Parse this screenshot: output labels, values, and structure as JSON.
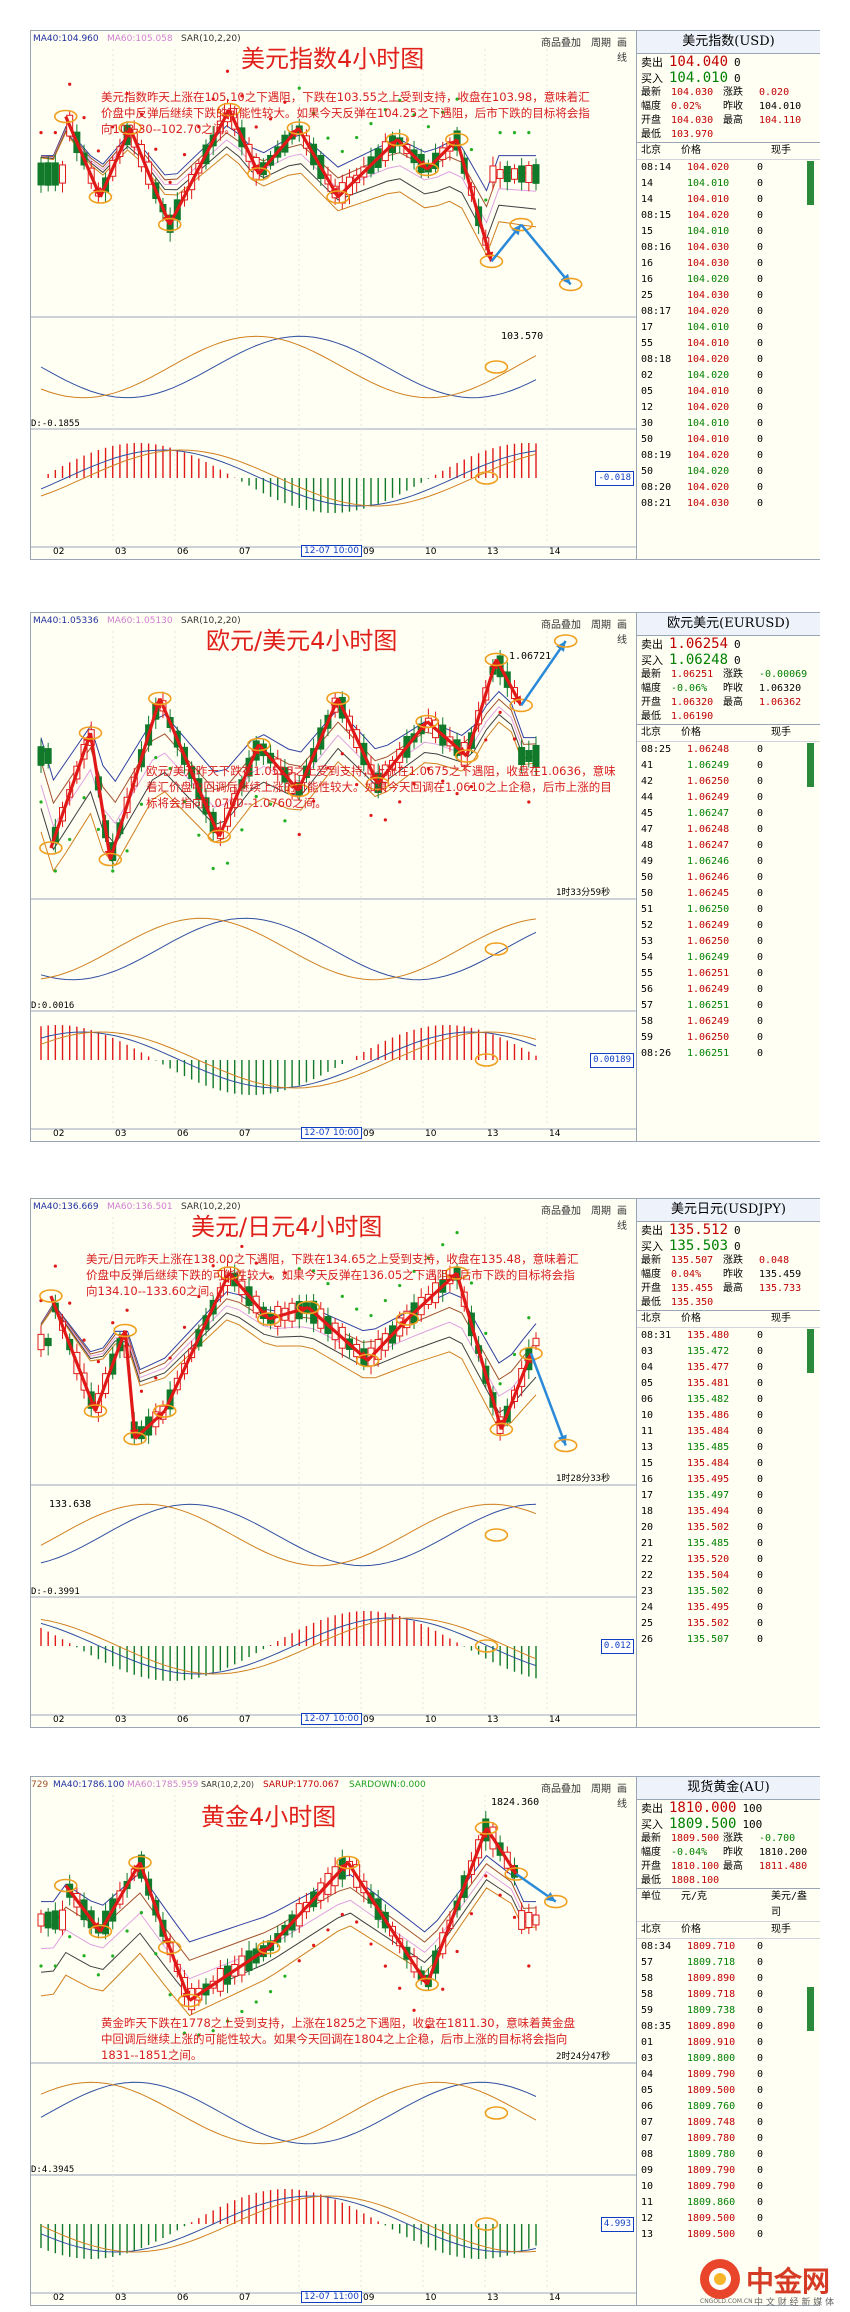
{
  "panels": [
    {
      "key": "usd",
      "title": "美元指数4小时图",
      "header": {
        "ma40": "MA40:104.960",
        "ma60": "MA60:105.058",
        "sar": "SAR(10,2,20)"
      },
      "top_buttons": [
        "商品叠加",
        "周期",
        "画线"
      ],
      "note": "美元指数昨天上涨在105.10之下遇阻，下跌在103.55之上受到支持，收盘在103.98，意味着汇价盘中反弹后继续下跌的可能性较大。如果今天反弹在104.25之下遇阻，后市下跌的目标将会指向103.30--102.70之间。",
      "price_label": "103.570",
      "macd_label": "D:-0.1855",
      "macd_box": "-0.018",
      "time_left": "",
      "x_labels": [
        "02",
        "03",
        "06",
        "07",
        "12-07 10:00",
        "09",
        "10",
        "13",
        "14"
      ],
      "quote": {
        "title": "美元指数(USD)",
        "sell_label": "卖出",
        "sell": "104.040",
        "sell_vol": "0",
        "buy_label": "买入",
        "buy": "104.010",
        "buy_vol": "0",
        "stats": [
          [
            "最新",
            "104.030",
            "涨跌",
            "0.020"
          ],
          [
            "幅度",
            "0.02%",
            "昨收",
            "104.010"
          ],
          [
            "开盘",
            "104.030",
            "最高",
            "104.110"
          ],
          [
            "最低",
            "103.970",
            "",
            ""
          ]
        ],
        "cols": [
          "北京",
          "价格",
          "现手"
        ],
        "ticks": [
          [
            "08:14",
            "104.020",
            "0"
          ],
          [
            "14",
            "104.010",
            "0"
          ],
          [
            "14",
            "104.010",
            "0"
          ],
          [
            "08:15",
            "104.020",
            "0"
          ],
          [
            "15",
            "104.010",
            "0"
          ],
          [
            "08:16",
            "104.030",
            "0"
          ],
          [
            "16",
            "104.030",
            "0"
          ],
          [
            "16",
            "104.020",
            "0"
          ],
          [
            "25",
            "104.030",
            "0"
          ],
          [
            "08:17",
            "104.020",
            "0"
          ],
          [
            "17",
            "104.010",
            "0"
          ],
          [
            "55",
            "104.010",
            "0"
          ],
          [
            "08:18",
            "104.020",
            "0"
          ],
          [
            "02",
            "104.020",
            "0"
          ],
          [
            "05",
            "104.010",
            "0"
          ],
          [
            "12",
            "104.020",
            "0"
          ],
          [
            "30",
            "104.010",
            "0"
          ],
          [
            "50",
            "104.010",
            "0"
          ],
          [
            "08:19",
            "104.020",
            "0"
          ],
          [
            "50",
            "104.020",
            "0"
          ],
          [
            "08:20",
            "104.020",
            "0"
          ],
          [
            "08:21",
            "104.030",
            "0"
          ]
        ]
      }
    },
    {
      "key": "eur",
      "title": "欧元/美元4小时图",
      "header": {
        "ma40": "MA40:1.05336",
        "ma60": "MA60:1.05130",
        "sar": "SAR(10,2,20)"
      },
      "top_buttons": [
        "商品叠加",
        "周期",
        "画线"
      ],
      "note": "欧元/美元昨天下跌在1.0525之上受到支持，上涨在1.0675之下遇阻，收盘在1.0636，意味着汇价盘中回调后继续上涨的可能性较大。如果今天回调在1.0610之上企稳，后市上涨的目标将会指向1.0700--1.0760之间。",
      "price_label": "1.06721",
      "macd_label": "D:0.0016",
      "macd_box": "0.00189",
      "time_left": "1时33分59秒",
      "x_labels": [
        "02",
        "03",
        "06",
        "07",
        "12-07 10:00",
        "09",
        "10",
        "13",
        "14"
      ],
      "quote": {
        "title": "欧元美元(EURUSD)",
        "sell_label": "卖出",
        "sell": "1.06254",
        "sell_vol": "0",
        "buy_label": "买入",
        "buy": "1.06248",
        "buy_vol": "0",
        "stats": [
          [
            "最新",
            "1.06251",
            "涨跌",
            "-0.00069"
          ],
          [
            "幅度",
            "-0.06%",
            "昨收",
            "1.06320"
          ],
          [
            "开盘",
            "1.06320",
            "最高",
            "1.06362"
          ],
          [
            "最低",
            "1.06190",
            "",
            ""
          ]
        ],
        "cols": [
          "北京",
          "价格",
          "现手"
        ],
        "ticks": [
          [
            "08:25",
            "1.06248",
            "0"
          ],
          [
            "41",
            "1.06249",
            "0"
          ],
          [
            "42",
            "1.06250",
            "0"
          ],
          [
            "44",
            "1.06249",
            "0"
          ],
          [
            "45",
            "1.06247",
            "0"
          ],
          [
            "47",
            "1.06248",
            "0"
          ],
          [
            "48",
            "1.06247",
            "0"
          ],
          [
            "49",
            "1.06246",
            "0"
          ],
          [
            "50",
            "1.06246",
            "0"
          ],
          [
            "50",
            "1.06245",
            "0"
          ],
          [
            "51",
            "1.06250",
            "0"
          ],
          [
            "52",
            "1.06249",
            "0"
          ],
          [
            "53",
            "1.06250",
            "0"
          ],
          [
            "54",
            "1.06249",
            "0"
          ],
          [
            "55",
            "1.06251",
            "0"
          ],
          [
            "56",
            "1.06249",
            "0"
          ],
          [
            "57",
            "1.06251",
            "0"
          ],
          [
            "58",
            "1.06249",
            "0"
          ],
          [
            "59",
            "1.06250",
            "0"
          ],
          [
            "08:26",
            "1.06251",
            "0"
          ]
        ]
      }
    },
    {
      "key": "jpy",
      "title": "美元/日元4小时图",
      "header": {
        "ma40": "MA40:136.669",
        "ma60": "MA60:136.501",
        "sar": "SAR(10,2,20)"
      },
      "top_buttons": [
        "商品叠加",
        "周期",
        "画线"
      ],
      "note": "美元/日元昨天上涨在138.00之下遇阻，下跌在134.65之上受到支持，收盘在135.48，意味着汇价盘中反弹后继续下跌的可能性较大。如果今天反弹在136.05之下遇阻，后市下跌的目标将会指向134.10--133.60之间。",
      "price_label": "133.638",
      "macd_label": "D:-0.3991",
      "macd_box": "0.012",
      "time_left": "1时28分33秒",
      "x_labels": [
        "02",
        "03",
        "06",
        "07",
        "12-07 10:00",
        "09",
        "10",
        "13",
        "14"
      ],
      "quote": {
        "title": "美元日元(USDJPY)",
        "sell_label": "卖出",
        "sell": "135.512",
        "sell_vol": "0",
        "buy_label": "买入",
        "buy": "135.503",
        "buy_vol": "0",
        "stats": [
          [
            "最新",
            "135.507",
            "涨跌",
            "0.048"
          ],
          [
            "幅度",
            "0.04%",
            "昨收",
            "135.459"
          ],
          [
            "开盘",
            "135.455",
            "最高",
            "135.733"
          ],
          [
            "最低",
            "135.350",
            "",
            ""
          ]
        ],
        "cols": [
          "北京",
          "价格",
          "现手"
        ],
        "ticks": [
          [
            "08:31",
            "135.480",
            "0"
          ],
          [
            "03",
            "135.472",
            "0"
          ],
          [
            "04",
            "135.477",
            "0"
          ],
          [
            "05",
            "135.481",
            "0"
          ],
          [
            "06",
            "135.482",
            "0"
          ],
          [
            "10",
            "135.486",
            "0"
          ],
          [
            "11",
            "135.484",
            "0"
          ],
          [
            "13",
            "135.485",
            "0"
          ],
          [
            "15",
            "135.484",
            "0"
          ],
          [
            "16",
            "135.495",
            "0"
          ],
          [
            "17",
            "135.497",
            "0"
          ],
          [
            "18",
            "135.494",
            "0"
          ],
          [
            "20",
            "135.502",
            "0"
          ],
          [
            "21",
            "135.485",
            "0"
          ],
          [
            "22",
            "135.520",
            "0"
          ],
          [
            "22",
            "135.504",
            "0"
          ],
          [
            "23",
            "135.502",
            "0"
          ],
          [
            "24",
            "135.495",
            "0"
          ],
          [
            "25",
            "135.502",
            "0"
          ],
          [
            "26",
            "135.507",
            "0"
          ]
        ]
      }
    },
    {
      "key": "xau",
      "title": "黄金4小时图",
      "header": {
        "ma40": "MA40:1786.100",
        "ma60": "MA60:1785.959",
        "sar": "SAR(10,2,20)",
        "sarup": "SARUP:1770.067",
        "sardown": "SARDOWN:0.000",
        "ma20": "729"
      },
      "top_buttons": [
        "商品叠加",
        "周期",
        "画线"
      ],
      "note": "黄金昨天下跌在1778之上受到支持，上涨在1825之下遇阻，收盘在1811.30，意味着黄金盘中回调后继续上涨的可能性较大。如果今天回调在1804之上企稳，后市上涨的目标将会指向1831--1851之间。",
      "price_label": "1824.360",
      "macd_label": "D:4.3945",
      "macd_box": "4.993",
      "time_left": "2时24分47秒",
      "x_labels": [
        "02",
        "03",
        "06",
        "07",
        "12-07 11:00",
        "09",
        "10",
        "13",
        "14"
      ],
      "quote": {
        "title": "现货黄金(AU)",
        "sell_label": "卖出",
        "sell": "1810.000",
        "sell_vol": "100",
        "buy_label": "买入",
        "buy": "1809.500",
        "buy_vol": "100",
        "stats": [
          [
            "最新",
            "1809.500",
            "涨跌",
            "-0.700"
          ],
          [
            "幅度",
            "-0.04%",
            "昨收",
            "1810.200"
          ],
          [
            "开盘",
            "1810.100",
            "最高",
            "1811.480"
          ],
          [
            "最低",
            "1808.100",
            "",
            ""
          ]
        ],
        "cols": [
          "单位",
          "元/克",
          "美元/盎司"
        ],
        "cols2": [
          "北京",
          "价格",
          "现手"
        ],
        "ticks": [
          [
            "08:34",
            "1809.710",
            "0"
          ],
          [
            "57",
            "1809.718",
            "0"
          ],
          [
            "58",
            "1809.890",
            "0"
          ],
          [
            "58",
            "1809.718",
            "0"
          ],
          [
            "59",
            "1809.738",
            "0"
          ],
          [
            "08:35",
            "1809.890",
            "0"
          ],
          [
            "01",
            "1809.910",
            "0"
          ],
          [
            "03",
            "1809.800",
            "0"
          ],
          [
            "04",
            "1809.790",
            "0"
          ],
          [
            "05",
            "1809.500",
            "0"
          ],
          [
            "06",
            "1809.760",
            "0"
          ],
          [
            "07",
            "1809.748",
            "0"
          ],
          [
            "07",
            "1809.780",
            "0"
          ],
          [
            "08",
            "1809.780",
            "0"
          ],
          [
            "09",
            "1809.790",
            "0"
          ],
          [
            "10",
            "1809.790",
            "0"
          ],
          [
            "11",
            "1809.860",
            "0"
          ],
          [
            "12",
            "1809.500",
            "0"
          ],
          [
            "13",
            "1809.500",
            "0"
          ]
        ]
      }
    }
  ],
  "footer": {
    "logo_text": "中金网",
    "logo_sub": "中 文 财 经 新 媒 体",
    "logo_url": "CNGOLD.COM.CN"
  },
  "colors": {
    "up_candle": "#e01818",
    "down_candle": "#107a2a",
    "trend_arrow": "#e01818",
    "forecast_arrow": "#2a8ad8",
    "circle": "#f0a020",
    "sar_up": "#e01818",
    "sar_down": "#22b022"
  },
  "chart_data": [
    {
      "type": "candlestick",
      "title": "美元指数4小时图",
      "x": [
        "02",
        "03",
        "06",
        "07",
        "12-07 10:00",
        "09",
        "10",
        "13",
        "14"
      ],
      "swing_points": [
        105.5,
        104.6,
        105.6,
        104.2,
        105.0,
        104.3,
        105.3,
        104.4,
        105.2,
        104.6,
        104.9,
        103.57
      ],
      "key_levels": {
        "resistance": 105.1,
        "support": 103.55,
        "close": 103.98,
        "rebound_cap": 104.25,
        "target": [
          103.3,
          102.7
        ]
      },
      "ylabel": ""
    },
    {
      "type": "candlestick",
      "title": "欧元/美元4小时图",
      "x": [
        "02",
        "03",
        "06",
        "07",
        "12-07 10:00",
        "09",
        "10",
        "13",
        "14"
      ],
      "key_levels": {
        "support": 1.0525,
        "resistance": 1.0675,
        "close": 1.0636,
        "pullback_floor": 1.061,
        "target": [
          1.07,
          1.076
        ]
      },
      "high_label": 1.06721
    },
    {
      "type": "candlestick",
      "title": "美元/日元4小时图",
      "x": [
        "02",
        "03",
        "06",
        "07",
        "12-07 10:00",
        "09",
        "10",
        "13",
        "14"
      ],
      "key_levels": {
        "resistance": 138.0,
        "support": 134.65,
        "close": 135.48,
        "rebound_cap": 136.05,
        "target": [
          134.1,
          133.6
        ]
      },
      "low_label": 133.638
    },
    {
      "type": "candlestick",
      "title": "黄金4小时图",
      "x": [
        "02",
        "03",
        "06",
        "07",
        "12-07 11:00",
        "09",
        "10",
        "13",
        "14"
      ],
      "key_levels": {
        "support": 1778,
        "resistance": 1825,
        "close": 1811.3,
        "pullback_floor": 1804,
        "target": [
          1831,
          1851
        ]
      },
      "high_label": 1824.36
    }
  ]
}
